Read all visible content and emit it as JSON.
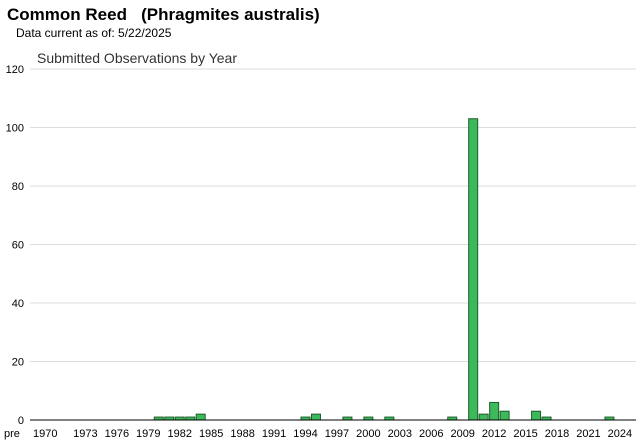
{
  "header": {
    "title": "Common Reed   (Phragmites australis)",
    "data_current": "Data current as of:  5/22/2025"
  },
  "colors": {
    "bar_fill": "#3cb95a",
    "bar_stroke": "#1f5e2c",
    "grid": "#dddddd",
    "axis": "#000000"
  },
  "chart_data": {
    "type": "bar",
    "title": "Submitted Observations by Year",
    "xlabel": "",
    "ylabel": "",
    "ylim": [
      0,
      120
    ],
    "yticks": [
      0,
      20,
      40,
      60,
      80,
      100,
      120
    ],
    "grid": true,
    "categories": [
      "pre 1970",
      "1970",
      "1971",
      "1972",
      "1973",
      "1974",
      "1975",
      "1976",
      "1977",
      "1978",
      "1979",
      "1980",
      "1981",
      "1982",
      "1983",
      "1984",
      "1985",
      "1986",
      "1987",
      "1988",
      "1989",
      "1990",
      "1991",
      "1992",
      "1993",
      "1994",
      "1995",
      "1996",
      "1997",
      "1998",
      "1999",
      "2000",
      "2001",
      "2002",
      "2003",
      "2004",
      "2005",
      "2006",
      "2007",
      "2008",
      "2009",
      "2010",
      "2011",
      "2012",
      "2013",
      "2014",
      "2015",
      "2016",
      "2017",
      "2018",
      "2019",
      "2020",
      "2021",
      "2022",
      "2023",
      "2024",
      "2025"
    ],
    "tick_labels": [
      "pre",
      "1970",
      "1973",
      "1976",
      "1979",
      "1982",
      "1985",
      "1988",
      "1991",
      "1994",
      "1997",
      "2000",
      "2003",
      "2006",
      "2009",
      "2012",
      "2015",
      "2018",
      "2021",
      "2024"
    ],
    "values": [
      0,
      0,
      0,
      0,
      0,
      0,
      0,
      0,
      0,
      0,
      0,
      1,
      1,
      1,
      1,
      2,
      0,
      0,
      0,
      0,
      0,
      0,
      0,
      0,
      0,
      1,
      2,
      0,
      0,
      1,
      0,
      1,
      0,
      1,
      0,
      0,
      0,
      0,
      0,
      1,
      0,
      103,
      2,
      6,
      3,
      0,
      0,
      3,
      1,
      0,
      0,
      0,
      0,
      0,
      1,
      0,
      0
    ]
  }
}
